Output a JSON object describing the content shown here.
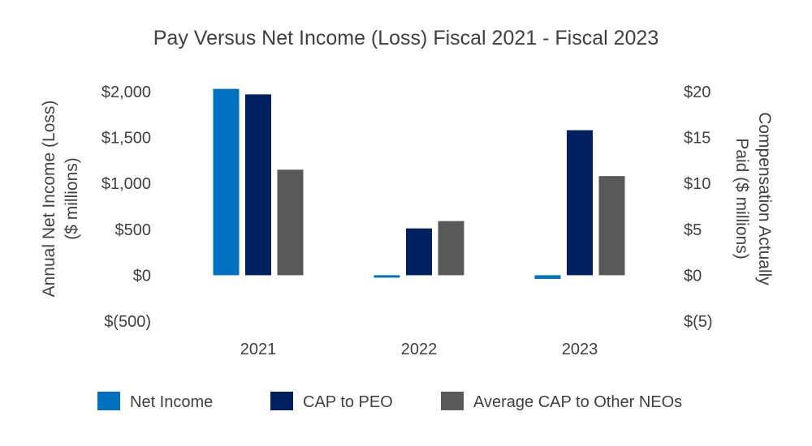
{
  "chart_data": {
    "type": "bar",
    "title": "Pay Versus Net Income (Loss) Fiscal 2021 - Fiscal 2023",
    "categories": [
      "2021",
      "2022",
      "2023"
    ],
    "ylabel_left": [
      "Annual Net Income (Loss)",
      "($ millions)"
    ],
    "ylabel_right": [
      "Compensation Actually",
      "Paid ($ millions)"
    ],
    "ylim_left": [
      -500,
      2000
    ],
    "ylim_right": [
      -5,
      20
    ],
    "left_ticks": [
      {
        "value": 2000,
        "label": "$2,000"
      },
      {
        "value": 1500,
        "label": "$1,500"
      },
      {
        "value": 1000,
        "label": "$1,000"
      },
      {
        "value": 500,
        "label": "$500"
      },
      {
        "value": 0,
        "label": "$0"
      },
      {
        "value": -500,
        "label": "$(500)"
      }
    ],
    "right_ticks": [
      {
        "value": 20,
        "label": "$20"
      },
      {
        "value": 15,
        "label": "$15"
      },
      {
        "value": 10,
        "label": "$10"
      },
      {
        "value": 5,
        "label": "$5"
      },
      {
        "value": 0,
        "label": "$0"
      },
      {
        "value": -5,
        "label": "$(5)"
      }
    ],
    "series": [
      {
        "name": "Net Income",
        "axis": "left",
        "color": "#0070C0",
        "values": [
          2030,
          -15,
          -40
        ]
      },
      {
        "name": "CAP to PEO",
        "axis": "right",
        "color": "#002060",
        "values": [
          19.7,
          5.1,
          15.8
        ]
      },
      {
        "name": "Average CAP to Other NEOs",
        "axis": "right",
        "color": "#595959",
        "values": [
          11.5,
          5.9,
          10.8
        ]
      }
    ],
    "grid": false,
    "legend_position": "bottom"
  }
}
